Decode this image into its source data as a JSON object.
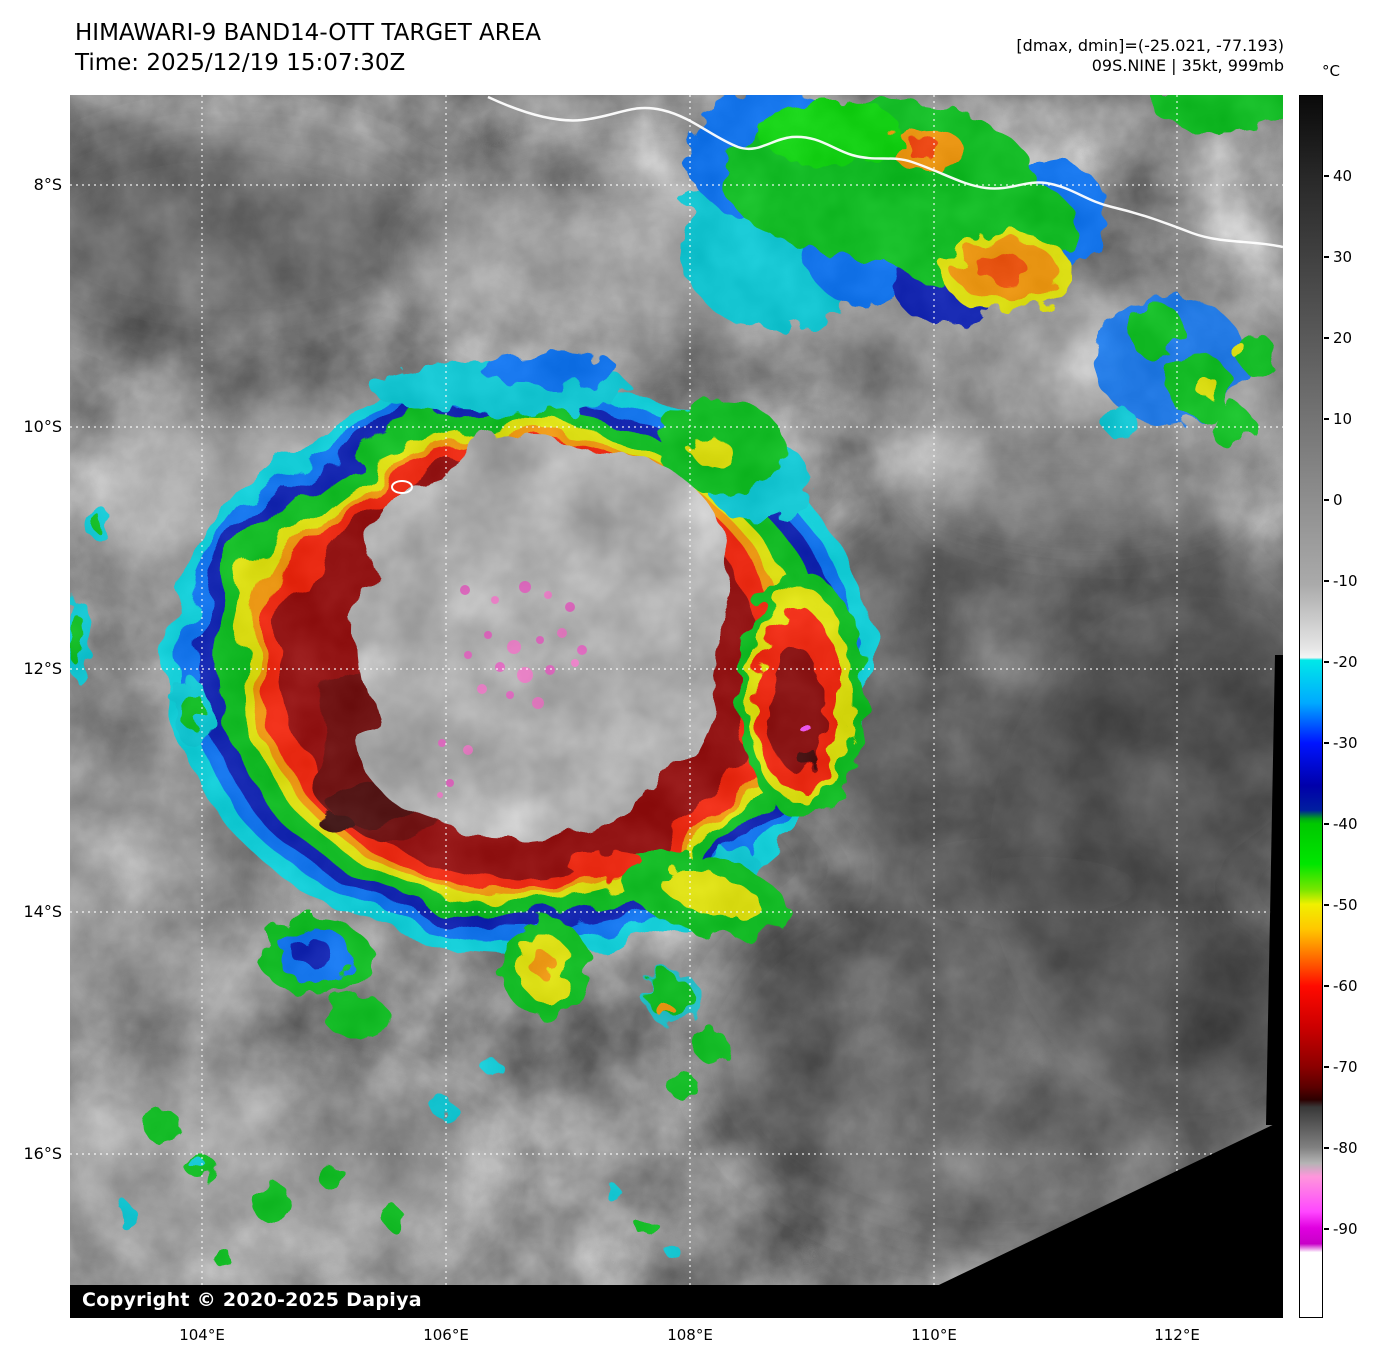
{
  "header": {
    "title": "HIMAWARI-9 BAND14-OTT TARGET AREA",
    "time_line": "Time: 2025/12/19 15:07:30Z",
    "dmax_dmin": "[dmax, dmin]=(-25.021, -77.193)",
    "storm_line": "09S.NINE | 35kt, 999mb"
  },
  "map": {
    "copyright": "Copyright © 2020-2025 Dapiya",
    "lat_labels": [
      "8°S",
      "10°S",
      "12°S",
      "14°S",
      "16°S"
    ],
    "lon_labels": [
      "104°E",
      "106°E",
      "108°E",
      "110°E",
      "112°E"
    ]
  },
  "colorbar": {
    "unit": "°C",
    "ticks": [
      40,
      30,
      20,
      10,
      0,
      -10,
      -20,
      -30,
      -40,
      -50,
      -60,
      -70,
      -80,
      -90
    ],
    "top_temp": 50,
    "bottom_temp": -101,
    "stops": [
      [
        0.0,
        "#0a0a0a"
      ],
      [
        0.066,
        "#282828"
      ],
      [
        0.199,
        "#5a5a5a"
      ],
      [
        0.331,
        "#8e8e8e"
      ],
      [
        0.4,
        "#aaaaaa"
      ],
      [
        0.452,
        "#e6e6e6"
      ],
      [
        0.46,
        "#f5f5f5"
      ],
      [
        0.462,
        "#00e8e8"
      ],
      [
        0.497,
        "#00aaff"
      ],
      [
        0.53,
        "#0014ff"
      ],
      [
        0.565,
        "#0000aa"
      ],
      [
        0.585,
        "#001ea0"
      ],
      [
        0.592,
        "#00aa14"
      ],
      [
        0.596,
        "#00c800"
      ],
      [
        0.629,
        "#00e600"
      ],
      [
        0.65,
        "#78e600"
      ],
      [
        0.662,
        "#f0f000"
      ],
      [
        0.682,
        "#ffc800"
      ],
      [
        0.695,
        "#ff9600"
      ],
      [
        0.715,
        "#ff4600"
      ],
      [
        0.729,
        "#ff0a00"
      ],
      [
        0.762,
        "#cd0000"
      ],
      [
        0.795,
        "#8c0000"
      ],
      [
        0.812,
        "#5a0000"
      ],
      [
        0.822,
        "#2d0000"
      ],
      [
        0.828,
        "#383838"
      ],
      [
        0.861,
        "#808080"
      ],
      [
        0.874,
        "#b4b4b4"
      ],
      [
        0.885,
        "#ff96dc"
      ],
      [
        0.914,
        "#ff46ff"
      ],
      [
        0.927,
        "#e000e0"
      ],
      [
        0.94,
        "#c800c8"
      ],
      [
        0.947,
        "#ffffff"
      ],
      [
        1.0,
        "#ffffff"
      ]
    ]
  }
}
